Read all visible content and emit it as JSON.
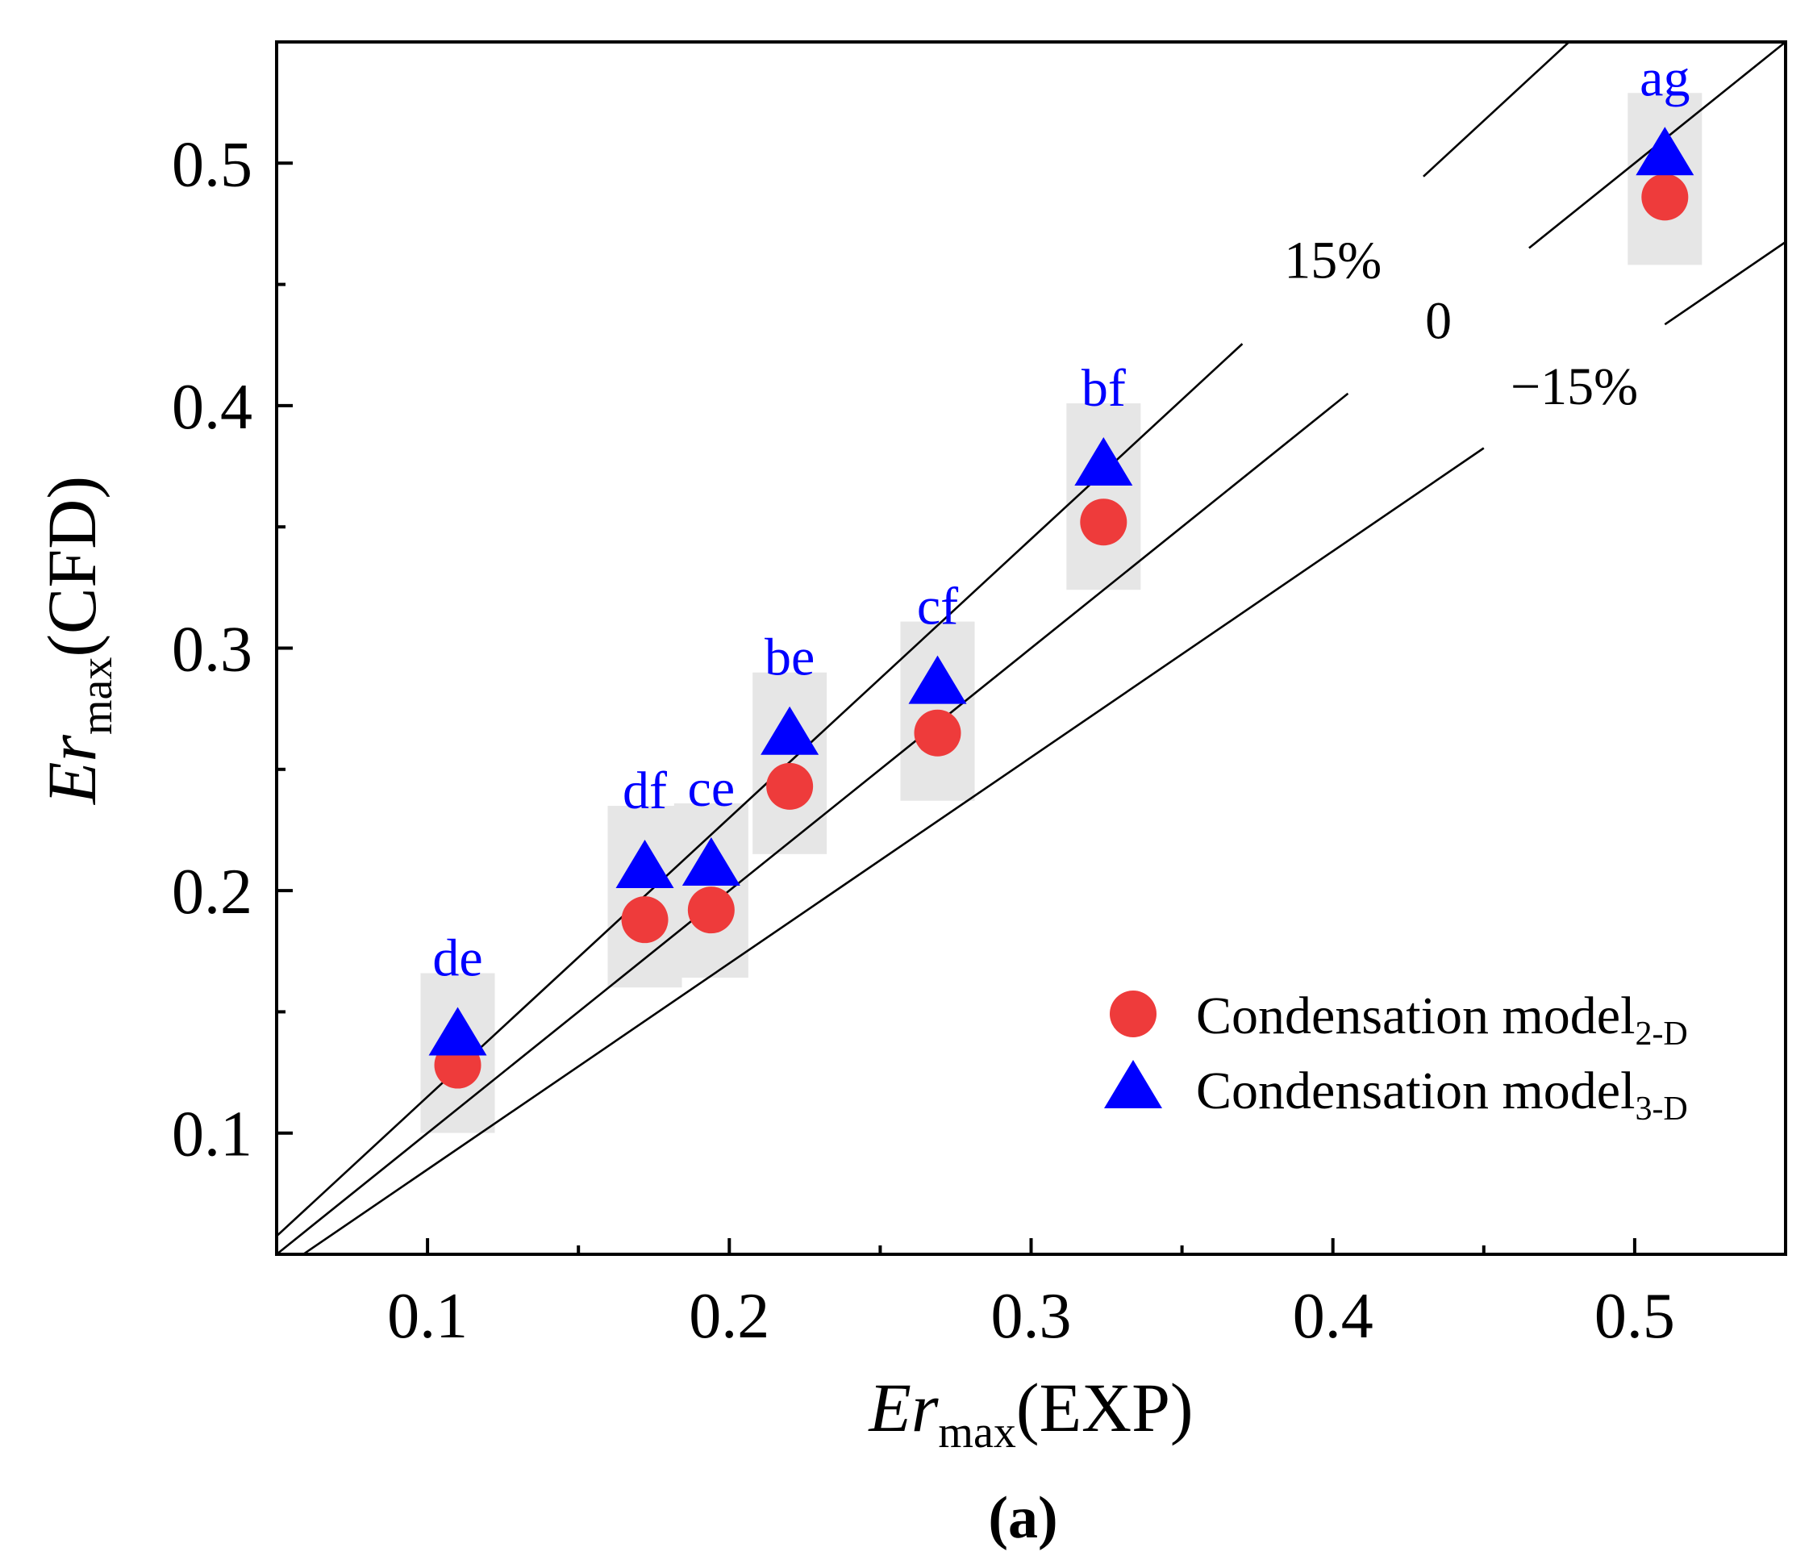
{
  "chart_data": {
    "type": "scatter",
    "x_axis": {
      "label_main": "Er",
      "label_sub": "max",
      "label_suffix": "(EXP)",
      "range": [
        0.05,
        0.55
      ],
      "major_ticks": [
        0.1,
        0.2,
        0.3,
        0.4,
        0.5
      ],
      "minor_ticks": [
        0.15,
        0.25,
        0.35,
        0.45
      ],
      "tick_labels": [
        "0.1",
        "0.2",
        "0.3",
        "0.4",
        "0.5"
      ]
    },
    "y_axis": {
      "label_main": "Er",
      "label_sub": "max",
      "label_suffix": "(CFD)",
      "range": [
        0.05,
        0.55
      ],
      "major_ticks": [
        0.1,
        0.2,
        0.3,
        0.4,
        0.5
      ],
      "minor_ticks": [
        0.15,
        0.25,
        0.35,
        0.45
      ],
      "tick_labels": [
        "0.1",
        "0.2",
        "0.3",
        "0.4",
        "0.5"
      ]
    },
    "reference_lines": [
      {
        "label": "15%",
        "slope": 1.15
      },
      {
        "label": "0",
        "slope": 1.0
      },
      {
        "label": "−15%",
        "slope": 0.85
      }
    ],
    "series": [
      {
        "name": "Condensation model",
        "name_sub": "2-D",
        "marker": "circle",
        "color": "#ee3b3b",
        "points": [
          {
            "label": "de",
            "x": 0.11,
            "y": 0.128
          },
          {
            "label": "df",
            "x": 0.172,
            "y": 0.188
          },
          {
            "label": "ce",
            "x": 0.194,
            "y": 0.192
          },
          {
            "label": "be",
            "x": 0.22,
            "y": 0.243
          },
          {
            "label": "cf",
            "x": 0.269,
            "y": 0.265
          },
          {
            "label": "bf",
            "x": 0.324,
            "y": 0.352
          },
          {
            "label": "ag",
            "x": 0.51,
            "y": 0.486
          }
        ]
      },
      {
        "name": "Condensation model",
        "name_sub": "3-D",
        "marker": "triangle",
        "color": "#0000ff",
        "points": [
          {
            "label": "de",
            "x": 0.11,
            "y": 0.14
          },
          {
            "label": "df",
            "x": 0.172,
            "y": 0.209
          },
          {
            "label": "ce",
            "x": 0.194,
            "y": 0.21
          },
          {
            "label": "be",
            "x": 0.22,
            "y": 0.264
          },
          {
            "label": "cf",
            "x": 0.269,
            "y": 0.285
          },
          {
            "label": "bf",
            "x": 0.324,
            "y": 0.375
          },
          {
            "label": "ag",
            "x": 0.51,
            "y": 0.503
          }
        ]
      }
    ],
    "point_labels": [
      "de",
      "df",
      "ce",
      "be",
      "cf",
      "bf",
      "ag"
    ],
    "point_label_color": "#0000ff",
    "highlight_color": "#e6e6e6",
    "legend_position": "bottom-right",
    "grid": false,
    "panel_label": "(a)"
  }
}
